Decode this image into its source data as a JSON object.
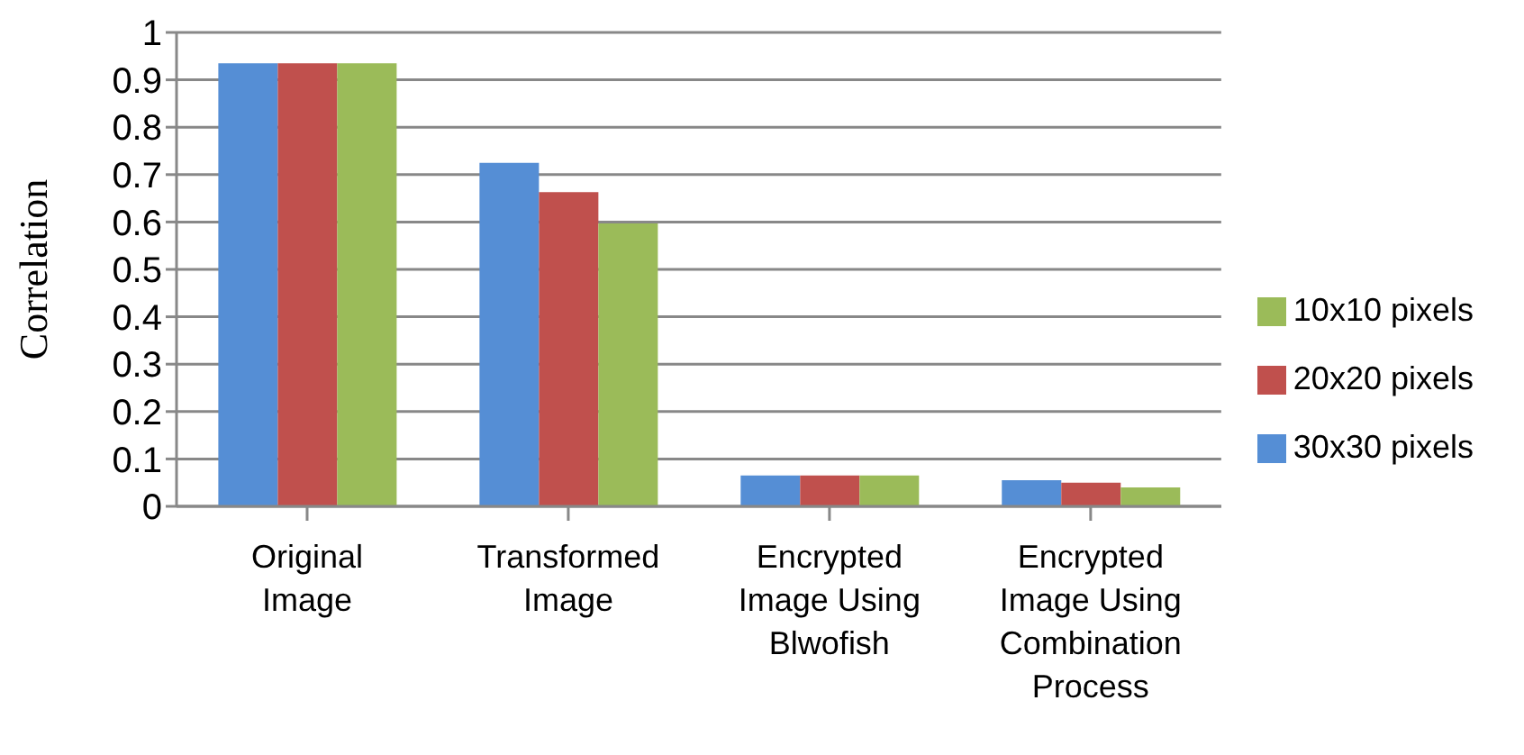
{
  "chart_data": {
    "type": "bar",
    "ylabel": "Correlation",
    "categories": [
      "Original Image",
      "Transformed Image",
      "Encrypted Image Using Blwofish",
      "Encrypted Image Using Combination Process"
    ],
    "series": [
      {
        "name": "30x30 pixels",
        "color": "#558ed5",
        "values": [
          0.935,
          0.725,
          0.065,
          0.055
        ]
      },
      {
        "name": "20x20 pixels",
        "color": "#c0504d",
        "values": [
          0.935,
          0.663,
          0.065,
          0.05
        ]
      },
      {
        "name": "10x10 pixels",
        "color": "#9bbb59",
        "values": [
          0.935,
          0.597,
          0.065,
          0.04
        ]
      }
    ],
    "ylim": [
      0,
      1
    ],
    "yticks": [
      0,
      0.1,
      0.2,
      0.3,
      0.4,
      0.5,
      0.6,
      0.7,
      0.8,
      0.9,
      1
    ],
    "grid": "y",
    "legend": "right"
  }
}
